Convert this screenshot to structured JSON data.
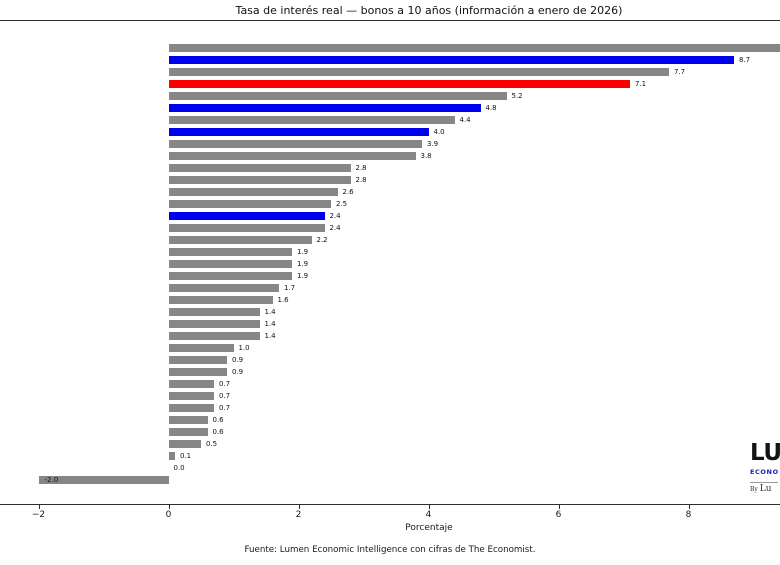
{
  "title": "Tasa de interés real — bonos a 10 años (información a enero de 2026)",
  "footer": "Fuente: Lumen Economic Intelligence con cifras de The Economist.",
  "x_axis": {
    "label": "Porcentaje",
    "ticks": [
      {
        "value": -2,
        "label": "−2"
      },
      {
        "value": 0,
        "label": "0"
      },
      {
        "value": 2,
        "label": "2"
      },
      {
        "value": 4,
        "label": "4"
      },
      {
        "value": 6,
        "label": "6"
      },
      {
        "value": 8,
        "label": "8"
      }
    ]
  },
  "colors": {
    "gray": "#868686",
    "blue": "#0000f0",
    "red": "#fa0000",
    "axis": "#2e2e2e"
  },
  "logo": {
    "wordmark": "LU",
    "tagline": "ECONO",
    "byline_prefix": "By ",
    "byline_text": "Lu"
  },
  "chart_data": {
    "type": "bar",
    "orientation": "horizontal",
    "title": "Tasa de interés real — bonos a 10 años (información a enero de 2026)",
    "xlabel": "Porcentaje",
    "x_visible_range": [
      -2.6,
      9.4
    ],
    "grid": false,
    "legend": false,
    "note": "Top bar extends past the right edge of the image; its value label is not visible.",
    "bars": [
      {
        "value": null,
        "label": "",
        "color": "gray",
        "clipped_right": true
      },
      {
        "value": 8.7,
        "label": "8.7",
        "color": "blue"
      },
      {
        "value": 7.7,
        "label": "7.7",
        "color": "gray"
      },
      {
        "value": 7.1,
        "label": "7.1",
        "color": "red"
      },
      {
        "value": 5.2,
        "label": "5.2",
        "color": "gray"
      },
      {
        "value": 4.8,
        "label": "4.8",
        "color": "blue"
      },
      {
        "value": 4.4,
        "label": "4.4",
        "color": "gray"
      },
      {
        "value": 4.0,
        "label": "4.0",
        "color": "blue"
      },
      {
        "value": 3.9,
        "label": "3.9",
        "color": "gray"
      },
      {
        "value": 3.8,
        "label": "3.8",
        "color": "gray"
      },
      {
        "value": 2.8,
        "label": "2.8",
        "color": "gray"
      },
      {
        "value": 2.8,
        "label": "2.8",
        "color": "gray"
      },
      {
        "value": 2.6,
        "label": "2.6",
        "color": "gray"
      },
      {
        "value": 2.5,
        "label": "2.5",
        "color": "gray"
      },
      {
        "value": 2.4,
        "label": "2.4",
        "color": "blue"
      },
      {
        "value": 2.4,
        "label": "2.4",
        "color": "gray"
      },
      {
        "value": 2.2,
        "label": "2.2",
        "color": "gray"
      },
      {
        "value": 1.9,
        "label": "1.9",
        "color": "gray"
      },
      {
        "value": 1.9,
        "label": "1.9",
        "color": "gray"
      },
      {
        "value": 1.9,
        "label": "1.9",
        "color": "gray"
      },
      {
        "value": 1.7,
        "label": "1.7",
        "color": "gray"
      },
      {
        "value": 1.6,
        "label": "1.6",
        "color": "gray"
      },
      {
        "value": 1.4,
        "label": "1.4",
        "color": "gray"
      },
      {
        "value": 1.4,
        "label": "1.4",
        "color": "gray"
      },
      {
        "value": 1.4,
        "label": "1.4",
        "color": "gray"
      },
      {
        "value": 1.0,
        "label": "1.0",
        "color": "gray"
      },
      {
        "value": 0.9,
        "label": "0.9",
        "color": "gray"
      },
      {
        "value": 0.9,
        "label": "0.9",
        "color": "gray"
      },
      {
        "value": 0.7,
        "label": "0.7",
        "color": "gray"
      },
      {
        "value": 0.7,
        "label": "0.7",
        "color": "gray"
      },
      {
        "value": 0.7,
        "label": "0.7",
        "color": "gray"
      },
      {
        "value": 0.6,
        "label": "0.6",
        "color": "gray"
      },
      {
        "value": 0.6,
        "label": "0.6",
        "color": "gray"
      },
      {
        "value": 0.5,
        "label": "0.5",
        "color": "gray"
      },
      {
        "value": 0.1,
        "label": "0.1",
        "color": "gray"
      },
      {
        "value": 0.0,
        "label": "0.0",
        "color": "gray"
      },
      {
        "value": -2.0,
        "label": "-2.0",
        "color": "gray"
      }
    ]
  }
}
